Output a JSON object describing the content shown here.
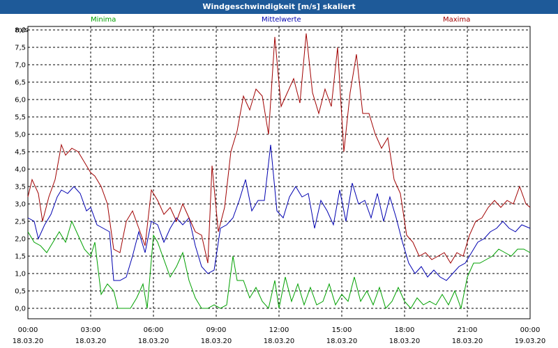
{
  "window": {
    "title": "Windgeschwindigkeit [m/s] skaliert"
  },
  "chart_data": {
    "type": "line",
    "title": "Windgeschwindigkeit [m/s] skaliert",
    "ylabel": "m/s",
    "ylim": [
      -0.3,
      8.1
    ],
    "yticks": [
      "0,0",
      "0,5",
      "1,0",
      "1,5",
      "2,0",
      "2,5",
      "3,0",
      "3,5",
      "4,0",
      "4,5",
      "5,0",
      "5,5",
      "6,0",
      "6,5",
      "7,0",
      "7,5",
      "8,0"
    ],
    "xlim": [
      0,
      24
    ],
    "xticks": [
      {
        "time": "00:00",
        "date": "18.03.20"
      },
      {
        "time": "03:00",
        "date": "18.03.20"
      },
      {
        "time": "06:00",
        "date": "18.03.20"
      },
      {
        "time": "09:00",
        "date": "18.03.20"
      },
      {
        "time": "12:00",
        "date": "18.03.20"
      },
      {
        "time": "15:00",
        "date": "18.03.20"
      },
      {
        "time": "18:00",
        "date": "18.03.20"
      },
      {
        "time": "21:00",
        "date": "18.03.20"
      },
      {
        "time": "00:00",
        "date": "19.03.20"
      }
    ],
    "grid": true,
    "legend_position": "top",
    "series": [
      {
        "name": "Minima",
        "color": "#00a000",
        "points": [
          [
            0,
            2.2
          ],
          [
            0.3,
            1.9
          ],
          [
            0.6,
            1.8
          ],
          [
            0.9,
            1.6
          ],
          [
            1.2,
            1.9
          ],
          [
            1.5,
            2.2
          ],
          [
            1.8,
            1.9
          ],
          [
            2.1,
            2.5
          ],
          [
            2.4,
            2.1
          ],
          [
            2.7,
            1.7
          ],
          [
            3.0,
            1.5
          ],
          [
            3.2,
            1.9
          ],
          [
            3.5,
            0.4
          ],
          [
            3.8,
            0.7
          ],
          [
            4.1,
            0.5
          ],
          [
            4.3,
            0.0
          ],
          [
            4.6,
            0.0
          ],
          [
            4.9,
            0.0
          ],
          [
            5.2,
            0.3
          ],
          [
            5.5,
            0.7
          ],
          [
            5.7,
            0.0
          ],
          [
            6.0,
            2.1
          ],
          [
            6.2,
            1.9
          ],
          [
            6.5,
            1.4
          ],
          [
            6.8,
            0.9
          ],
          [
            7.1,
            1.2
          ],
          [
            7.4,
            1.6
          ],
          [
            7.7,
            0.8
          ],
          [
            8.0,
            0.3
          ],
          [
            8.3,
            0.0
          ],
          [
            8.6,
            0.0
          ],
          [
            8.9,
            0.1
          ],
          [
            9.2,
            0.0
          ],
          [
            9.5,
            0.1
          ],
          [
            9.8,
            1.5
          ],
          [
            10.0,
            0.8
          ],
          [
            10.3,
            0.8
          ],
          [
            10.6,
            0.3
          ],
          [
            10.9,
            0.6
          ],
          [
            11.2,
            0.2
          ],
          [
            11.5,
            0.0
          ],
          [
            11.8,
            0.8
          ],
          [
            12.0,
            0.0
          ],
          [
            12.3,
            0.9
          ],
          [
            12.6,
            0.2
          ],
          [
            12.9,
            0.7
          ],
          [
            13.2,
            0.1
          ],
          [
            13.5,
            0.6
          ],
          [
            13.8,
            0.1
          ],
          [
            14.1,
            0.2
          ],
          [
            14.4,
            0.7
          ],
          [
            14.7,
            0.1
          ],
          [
            15.0,
            0.4
          ],
          [
            15.3,
            0.2
          ],
          [
            15.6,
            0.9
          ],
          [
            15.9,
            0.2
          ],
          [
            16.2,
            0.5
          ],
          [
            16.5,
            0.1
          ],
          [
            16.8,
            0.6
          ],
          [
            17.1,
            0.0
          ],
          [
            17.4,
            0.2
          ],
          [
            17.7,
            0.6
          ],
          [
            18.0,
            0.2
          ],
          [
            18.3,
            0.0
          ],
          [
            18.6,
            0.3
          ],
          [
            18.9,
            0.1
          ],
          [
            19.2,
            0.2
          ],
          [
            19.5,
            0.1
          ],
          [
            19.8,
            0.4
          ],
          [
            20.1,
            0.1
          ],
          [
            20.4,
            0.5
          ],
          [
            20.7,
            0.0
          ],
          [
            21.0,
            0.9
          ],
          [
            21.3,
            1.3
          ],
          [
            21.6,
            1.3
          ],
          [
            21.9,
            1.4
          ],
          [
            22.2,
            1.5
          ],
          [
            22.5,
            1.7
          ],
          [
            22.8,
            1.6
          ],
          [
            23.1,
            1.5
          ],
          [
            23.4,
            1.7
          ],
          [
            23.7,
            1.7
          ],
          [
            24.0,
            1.6
          ]
        ]
      },
      {
        "name": "Mittelwerte",
        "color": "#0000b0",
        "points": [
          [
            0,
            2.6
          ],
          [
            0.3,
            2.5
          ],
          [
            0.5,
            2.0
          ],
          [
            0.8,
            2.4
          ],
          [
            1.1,
            2.7
          ],
          [
            1.4,
            3.2
          ],
          [
            1.6,
            3.4
          ],
          [
            1.9,
            3.3
          ],
          [
            2.2,
            3.5
          ],
          [
            2.5,
            3.3
          ],
          [
            2.8,
            2.8
          ],
          [
            3.0,
            2.9
          ],
          [
            3.3,
            2.4
          ],
          [
            3.6,
            2.3
          ],
          [
            3.9,
            2.2
          ],
          [
            4.1,
            0.8
          ],
          [
            4.4,
            0.8
          ],
          [
            4.7,
            0.9
          ],
          [
            5.0,
            1.5
          ],
          [
            5.3,
            2.2
          ],
          [
            5.6,
            1.6
          ],
          [
            5.9,
            2.5
          ],
          [
            6.2,
            2.4
          ],
          [
            6.5,
            1.9
          ],
          [
            6.8,
            2.3
          ],
          [
            7.1,
            2.6
          ],
          [
            7.4,
            2.4
          ],
          [
            7.7,
            2.6
          ],
          [
            8.0,
            1.8
          ],
          [
            8.3,
            1.2
          ],
          [
            8.6,
            1.0
          ],
          [
            8.9,
            1.1
          ],
          [
            9.2,
            2.3
          ],
          [
            9.5,
            2.4
          ],
          [
            9.8,
            2.6
          ],
          [
            10.1,
            3.1
          ],
          [
            10.4,
            3.7
          ],
          [
            10.7,
            2.8
          ],
          [
            11.0,
            3.1
          ],
          [
            11.3,
            3.1
          ],
          [
            11.6,
            4.7
          ],
          [
            11.9,
            2.8
          ],
          [
            12.2,
            2.6
          ],
          [
            12.5,
            3.2
          ],
          [
            12.8,
            3.5
          ],
          [
            13.1,
            3.2
          ],
          [
            13.4,
            3.3
          ],
          [
            13.7,
            2.3
          ],
          [
            14.0,
            3.1
          ],
          [
            14.3,
            2.8
          ],
          [
            14.6,
            2.4
          ],
          [
            14.9,
            3.4
          ],
          [
            15.2,
            2.5
          ],
          [
            15.5,
            3.6
          ],
          [
            15.8,
            3.0
          ],
          [
            16.1,
            3.1
          ],
          [
            16.4,
            2.6
          ],
          [
            16.7,
            3.3
          ],
          [
            17.0,
            2.5
          ],
          [
            17.3,
            3.2
          ],
          [
            17.6,
            2.6
          ],
          [
            17.9,
            1.9
          ],
          [
            18.2,
            1.3
          ],
          [
            18.5,
            1.0
          ],
          [
            18.8,
            1.2
          ],
          [
            19.1,
            0.9
          ],
          [
            19.4,
            1.1
          ],
          [
            19.7,
            0.9
          ],
          [
            20.0,
            0.8
          ],
          [
            20.3,
            1.0
          ],
          [
            20.6,
            1.2
          ],
          [
            20.9,
            1.3
          ],
          [
            21.2,
            1.6
          ],
          [
            21.5,
            1.9
          ],
          [
            21.8,
            2.0
          ],
          [
            22.1,
            2.2
          ],
          [
            22.4,
            2.3
          ],
          [
            22.7,
            2.5
          ],
          [
            23.0,
            2.3
          ],
          [
            23.3,
            2.2
          ],
          [
            23.6,
            2.4
          ],
          [
            24.0,
            2.3
          ]
        ]
      },
      {
        "name": "Maxima",
        "color": "#a00000",
        "points": [
          [
            0,
            3.2
          ],
          [
            0.2,
            3.7
          ],
          [
            0.5,
            3.3
          ],
          [
            0.7,
            2.5
          ],
          [
            1.0,
            3.2
          ],
          [
            1.3,
            3.7
          ],
          [
            1.6,
            4.7
          ],
          [
            1.8,
            4.4
          ],
          [
            2.1,
            4.6
          ],
          [
            2.4,
            4.5
          ],
          [
            2.7,
            4.2
          ],
          [
            3.0,
            3.9
          ],
          [
            3.2,
            3.8
          ],
          [
            3.5,
            3.5
          ],
          [
            3.8,
            3.0
          ],
          [
            4.1,
            1.7
          ],
          [
            4.4,
            1.6
          ],
          [
            4.7,
            2.5
          ],
          [
            5.0,
            2.8
          ],
          [
            5.3,
            2.3
          ],
          [
            5.6,
            1.8
          ],
          [
            5.9,
            3.4
          ],
          [
            6.2,
            3.1
          ],
          [
            6.5,
            2.7
          ],
          [
            6.8,
            2.9
          ],
          [
            7.1,
            2.5
          ],
          [
            7.4,
            3.0
          ],
          [
            7.7,
            2.6
          ],
          [
            8.0,
            2.2
          ],
          [
            8.3,
            2.1
          ],
          [
            8.6,
            1.3
          ],
          [
            8.8,
            4.1
          ],
          [
            9.1,
            2.2
          ],
          [
            9.4,
            2.9
          ],
          [
            9.7,
            4.5
          ],
          [
            10.0,
            5.1
          ],
          [
            10.3,
            6.1
          ],
          [
            10.6,
            5.7
          ],
          [
            10.9,
            6.3
          ],
          [
            11.2,
            6.1
          ],
          [
            11.5,
            5.0
          ],
          [
            11.8,
            7.8
          ],
          [
            12.1,
            5.8
          ],
          [
            12.4,
            6.2
          ],
          [
            12.7,
            6.6
          ],
          [
            13.0,
            5.9
          ],
          [
            13.3,
            7.9
          ],
          [
            13.6,
            6.2
          ],
          [
            13.9,
            5.6
          ],
          [
            14.2,
            6.3
          ],
          [
            14.5,
            5.8
          ],
          [
            14.8,
            7.5
          ],
          [
            15.1,
            4.5
          ],
          [
            15.4,
            6.2
          ],
          [
            15.7,
            7.3
          ],
          [
            16.0,
            5.6
          ],
          [
            16.3,
            5.6
          ],
          [
            16.6,
            5.0
          ],
          [
            16.9,
            4.6
          ],
          [
            17.2,
            4.9
          ],
          [
            17.5,
            3.7
          ],
          [
            17.8,
            3.3
          ],
          [
            18.1,
            2.1
          ],
          [
            18.4,
            1.9
          ],
          [
            18.7,
            1.5
          ],
          [
            19.0,
            1.6
          ],
          [
            19.3,
            1.4
          ],
          [
            19.6,
            1.5
          ],
          [
            19.9,
            1.6
          ],
          [
            20.2,
            1.3
          ],
          [
            20.5,
            1.6
          ],
          [
            20.8,
            1.5
          ],
          [
            21.1,
            2.1
          ],
          [
            21.4,
            2.5
          ],
          [
            21.7,
            2.6
          ],
          [
            22.0,
            2.9
          ],
          [
            22.3,
            3.1
          ],
          [
            22.6,
            2.9
          ],
          [
            22.9,
            3.1
          ],
          [
            23.2,
            3.0
          ],
          [
            23.5,
            3.5
          ],
          [
            23.8,
            3.0
          ],
          [
            24.0,
            2.9
          ]
        ]
      }
    ]
  }
}
